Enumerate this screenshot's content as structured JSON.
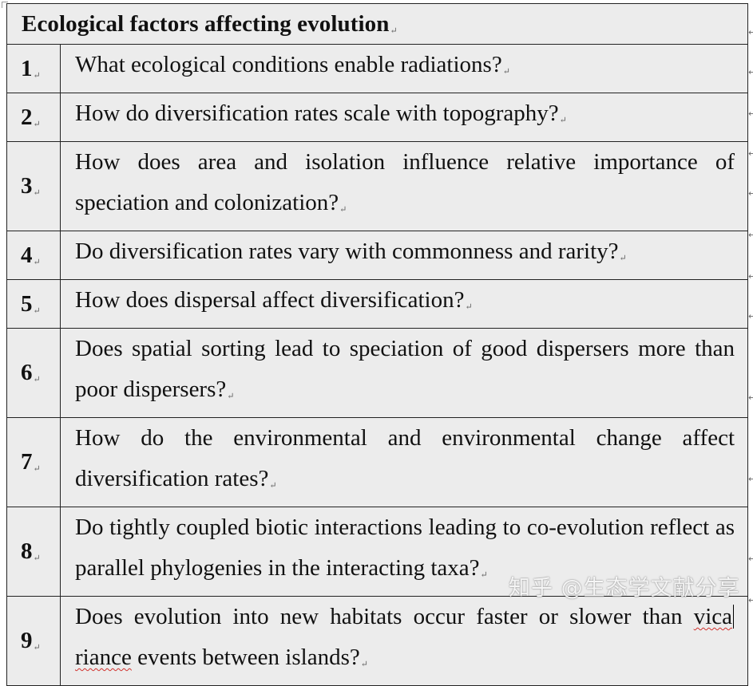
{
  "table": {
    "title": "Ecological factors affecting evolution",
    "rows": [
      {
        "num": "1",
        "question": "What ecological conditions enable radiations?"
      },
      {
        "num": "2",
        "question": "How do diversification rates scale with topography?"
      },
      {
        "num": "3",
        "question": "How does area and isolation influence relative importance of speciation and colonization?"
      },
      {
        "num": "4",
        "question": "Do diversification rates vary with commonness and rarity?"
      },
      {
        "num": "5",
        "question": "How does dispersal affect diversification?"
      },
      {
        "num": "6",
        "question": "Does spatial sorting lead to speciation of good dispersers more than poor dispersers?"
      },
      {
        "num": "7",
        "question": "How do the environmental and environmental change affect diversification rates?"
      },
      {
        "num": "8",
        "question": "Do tightly coupled biotic interactions leading to co-evolution reflect as parallel phylogenies in the interacting taxa?"
      },
      {
        "num": "9",
        "question_before": "Does evolution into new habitats occur faster or slower than ",
        "question_word_a": "vica",
        "question_word_b": "riance",
        "question_after": " events between islands?"
      }
    ]
  },
  "paragraph_mark": "↵",
  "watermark": "知乎 @生态学文献分享"
}
